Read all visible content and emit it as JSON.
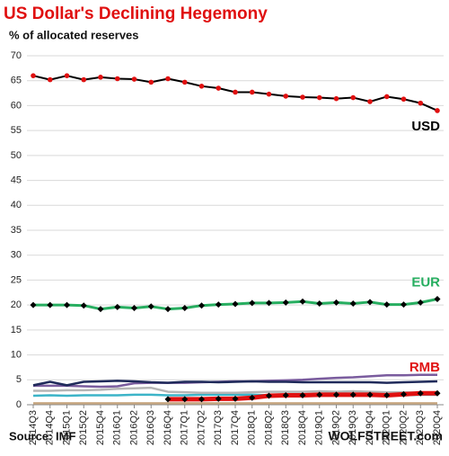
{
  "chart_data": {
    "type": "line",
    "title": "US Dollar's  Declining Hegemony",
    "subtitle": "% of allocated reserves",
    "source": "Source: IMF",
    "credit": "WOLFSTREET.com",
    "categories": [
      "2014Q3",
      "2014Q4",
      "2015Q1",
      "2015Q2",
      "2015Q4",
      "2016Q1",
      "2016Q2",
      "2016Q3",
      "2016Q4",
      "2017Q1",
      "2017Q2",
      "2017Q3",
      "2017Q4",
      "2018Q1",
      "2018Q2",
      "2018Q3",
      "2018Q4",
      "2019Q1",
      "2019Q2",
      "2019Q3",
      "2019Q4",
      "2020Q1",
      "2020Q2",
      "2020Q3",
      "2020Q4"
    ],
    "ylim": [
      0,
      70
    ],
    "yticks": [
      0,
      5,
      10,
      15,
      20,
      25,
      30,
      35,
      40,
      45,
      50,
      55,
      60,
      65,
      70
    ],
    "grid": true,
    "series": [
      {
        "color": "#c8a882",
        "values": [
          0.3,
          0.3,
          0.3,
          0.3,
          0.3,
          0.3,
          0.3,
          0.3,
          0.3,
          0.3,
          0.3,
          0.3,
          0.3,
          0.3,
          0.3,
          0.3,
          0.3,
          0.3,
          0.3,
          0.3,
          0.3,
          0.3,
          0.3,
          0.3,
          0.3
        ]
      },
      {
        "color": "#3cb4c8",
        "values": [
          1.8,
          1.9,
          1.8,
          1.9,
          1.9,
          1.9,
          2.0,
          2.0,
          1.9,
          1.9,
          2.0,
          2.0,
          2.0,
          2.0,
          1.9,
          1.9,
          1.8,
          1.9,
          1.9,
          1.9,
          1.9,
          1.8,
          1.9,
          2.0,
          2.0
        ]
      },
      {
        "color": "#b5b5b5",
        "values": [
          2.8,
          2.8,
          2.9,
          2.9,
          3.0,
          3.2,
          3.3,
          3.4,
          2.6,
          2.5,
          2.4,
          2.4,
          2.4,
          2.5,
          2.6,
          2.6,
          2.6,
          2.7,
          2.6,
          2.7,
          2.6,
          2.5,
          2.5,
          2.4,
          2.4
        ]
      },
      {
        "color": "#7a5c9e",
        "values": [
          3.8,
          3.8,
          3.8,
          3.7,
          3.6,
          3.7,
          4.3,
          4.4,
          4.4,
          4.4,
          4.5,
          4.6,
          4.7,
          4.7,
          4.8,
          4.9,
          5.0,
          5.2,
          5.4,
          5.5,
          5.7,
          5.9,
          5.9,
          6.0,
          6.0
        ]
      },
      {
        "color": "#1f2a5a",
        "values": [
          3.9,
          4.6,
          3.9,
          4.6,
          4.7,
          4.8,
          4.7,
          4.5,
          4.4,
          4.6,
          4.6,
          4.5,
          4.6,
          4.7,
          4.6,
          4.6,
          4.5,
          4.5,
          4.5,
          4.5,
          4.5,
          4.4,
          4.5,
          4.6,
          4.7
        ]
      },
      {
        "name": "USD",
        "color": "#000000",
        "label_color": "#000000",
        "marker": "circle",
        "marker_color": "#e01010",
        "width": 2,
        "values": [
          66.0,
          65.2,
          66.0,
          65.2,
          65.7,
          65.4,
          65.3,
          64.7,
          65.4,
          64.7,
          63.9,
          63.5,
          62.7,
          62.7,
          62.3,
          61.9,
          61.7,
          61.6,
          61.4,
          61.6,
          60.8,
          61.8,
          61.3,
          60.5,
          59.0
        ]
      },
      {
        "name": "EUR",
        "color": "#27ae60",
        "label_color": "#27ae60",
        "marker": "diamond",
        "marker_color": "#000000",
        "width": 3,
        "values": [
          20.0,
          20.0,
          20.0,
          19.9,
          19.2,
          19.6,
          19.4,
          19.7,
          19.2,
          19.4,
          19.9,
          20.1,
          20.2,
          20.4,
          20.4,
          20.5,
          20.7,
          20.3,
          20.5,
          20.3,
          20.6,
          20.1,
          20.1,
          20.5,
          21.2
        ]
      },
      {
        "name": "RMB",
        "color": "#e01010",
        "label_color": "#e01010",
        "marker": "diamond",
        "marker_color": "#000000",
        "width": 5,
        "values": [
          null,
          null,
          null,
          null,
          null,
          null,
          null,
          null,
          1.1,
          1.1,
          1.1,
          1.2,
          1.2,
          1.4,
          1.8,
          1.9,
          1.9,
          2.0,
          2.0,
          2.0,
          2.0,
          1.9,
          2.1,
          2.3,
          2.3
        ]
      }
    ]
  }
}
